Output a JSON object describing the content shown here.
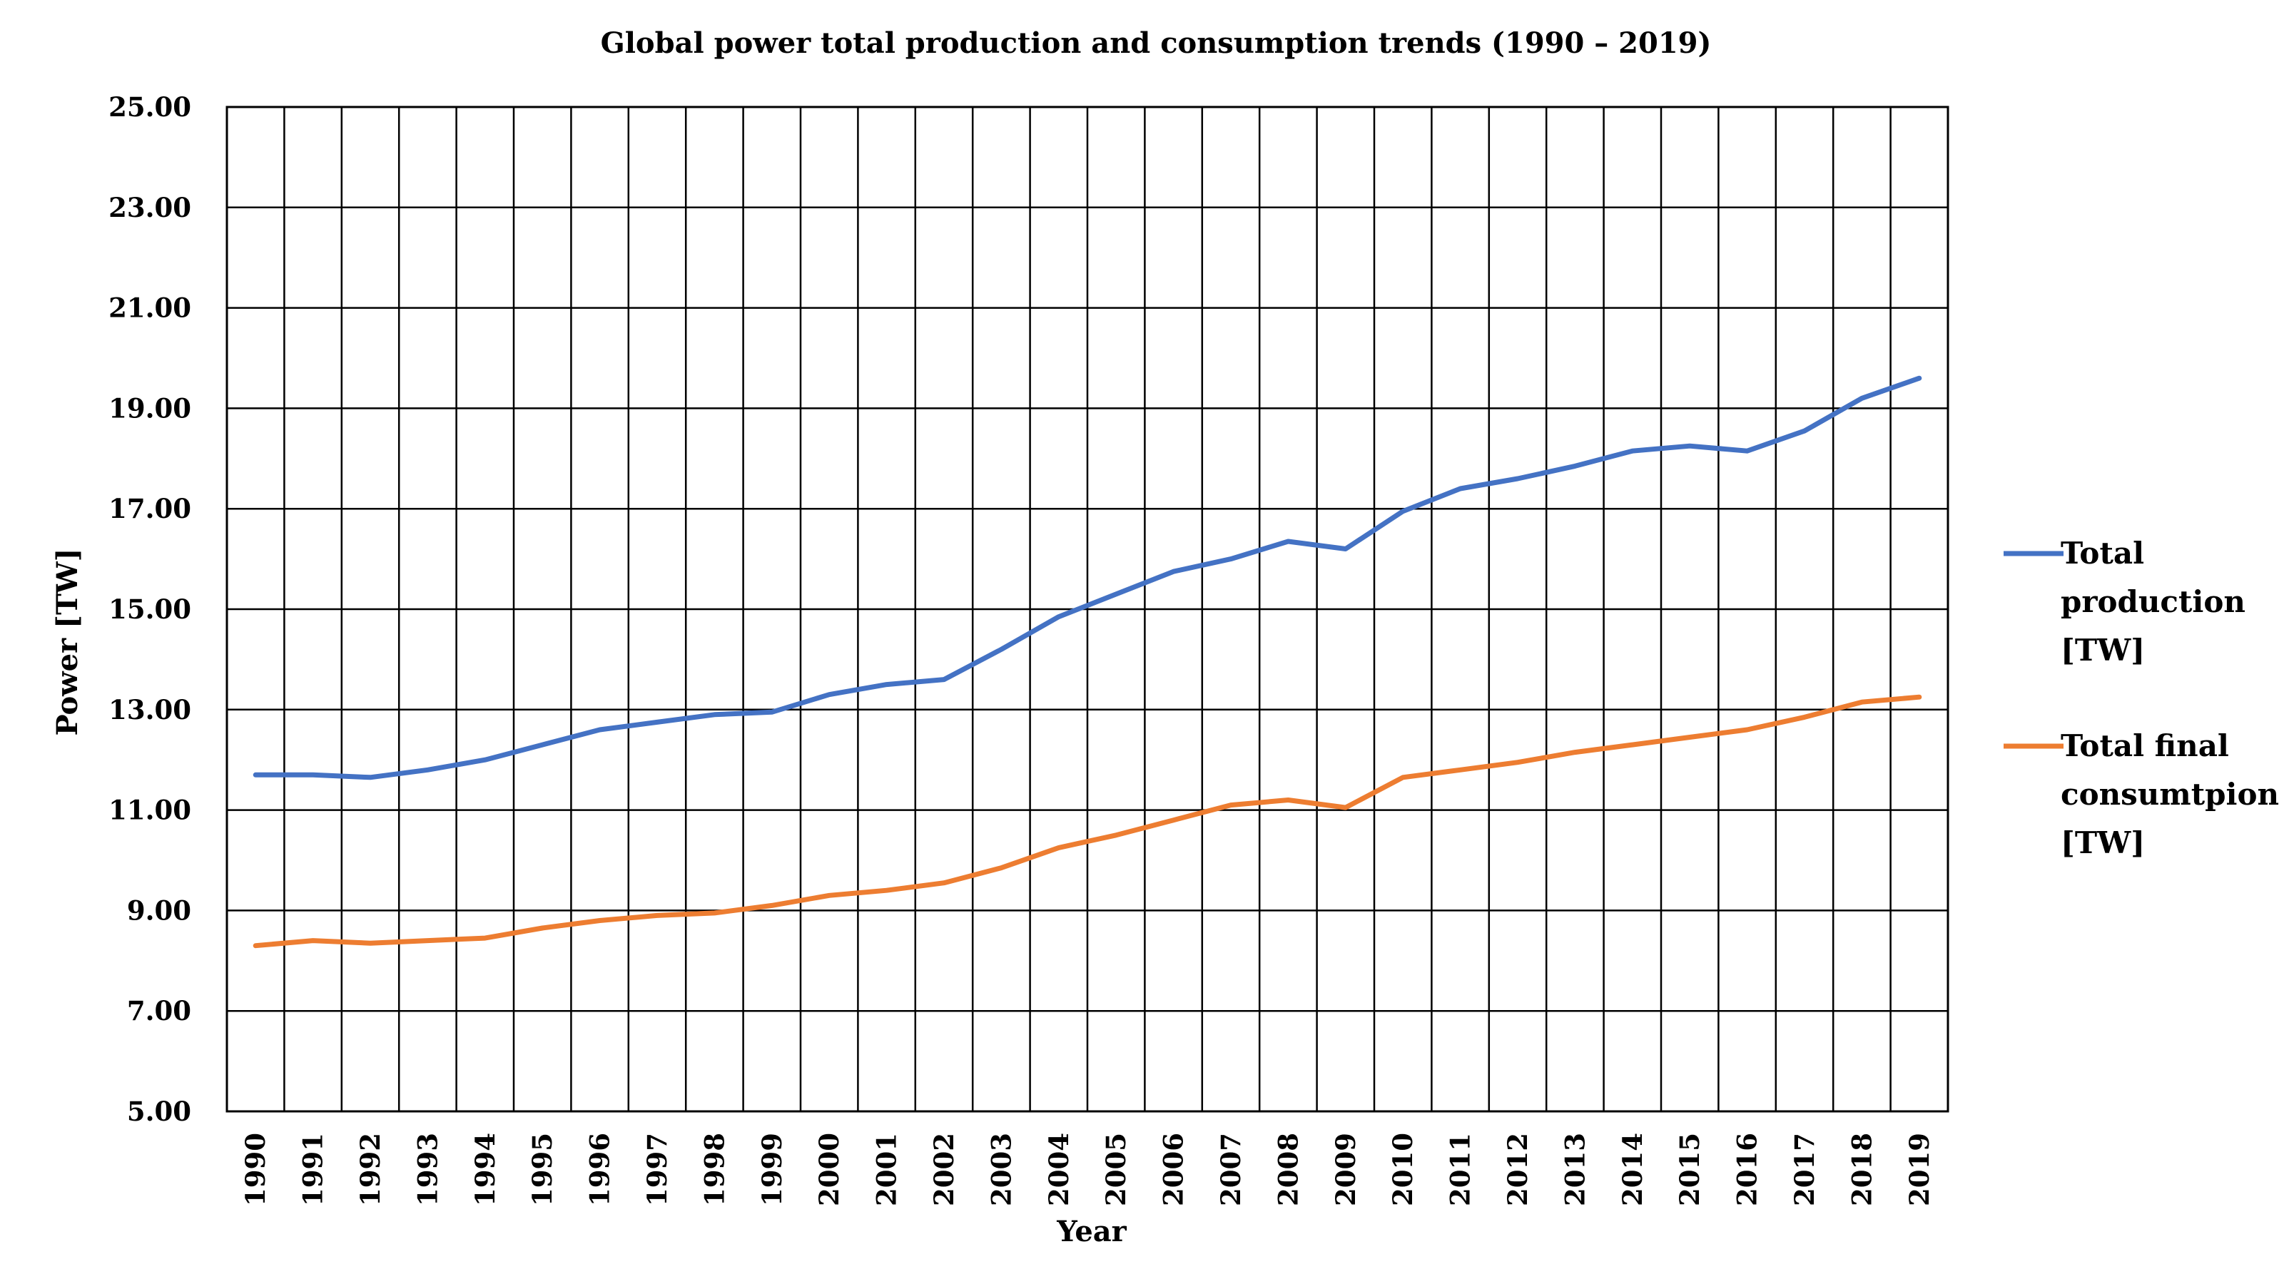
{
  "chart_data": {
    "type": "line",
    "title": "Global power total production and consumption trends (1990 – 2019)",
    "xlabel": "Year",
    "ylabel": "Power [TW]",
    "ylim": [
      5,
      25
    ],
    "y_ticks": [
      "5.00",
      "7.00",
      "9.00",
      "11.00",
      "13.00",
      "15.00",
      "17.00",
      "19.00",
      "21.00",
      "23.00",
      "25.00"
    ],
    "y_tick_values": [
      5,
      7,
      9,
      11,
      13,
      15,
      17,
      19,
      21,
      23,
      25
    ],
    "grid": true,
    "legend_position": "right",
    "categories": [
      "1990",
      "1991",
      "1992",
      "1993",
      "1994",
      "1995",
      "1996",
      "1997",
      "1998",
      "1999",
      "2000",
      "2001",
      "2002",
      "2003",
      "2004",
      "2005",
      "2006",
      "2007",
      "2008",
      "2009",
      "2010",
      "2011",
      "2012",
      "2013",
      "2014",
      "2015",
      "2016",
      "2017",
      "2018",
      "2019"
    ],
    "series": [
      {
        "name": "Total production [TW]",
        "legend_lines": [
          "Total",
          "production",
          "[TW]"
        ],
        "color": "#4472C4",
        "values": [
          11.7,
          11.7,
          11.65,
          11.8,
          12.0,
          12.3,
          12.6,
          12.75,
          12.9,
          12.95,
          13.3,
          13.5,
          13.6,
          14.2,
          14.85,
          15.3,
          15.75,
          16.0,
          16.35,
          16.2,
          16.95,
          17.4,
          17.6,
          17.85,
          18.15,
          18.25,
          18.15,
          18.55,
          19.2,
          19.6
        ]
      },
      {
        "name": "Total final consumtpion [TW]",
        "legend_lines": [
          "Total final",
          "consumtpion",
          "[TW]"
        ],
        "color": "#ED7D31",
        "values": [
          8.3,
          8.4,
          8.35,
          8.4,
          8.45,
          8.65,
          8.8,
          8.9,
          8.95,
          9.1,
          9.3,
          9.4,
          9.55,
          9.85,
          10.25,
          10.5,
          10.8,
          11.1,
          11.2,
          11.05,
          11.65,
          11.8,
          11.95,
          12.15,
          12.3,
          12.45,
          12.6,
          12.85,
          13.15,
          13.25
        ]
      }
    ]
  }
}
